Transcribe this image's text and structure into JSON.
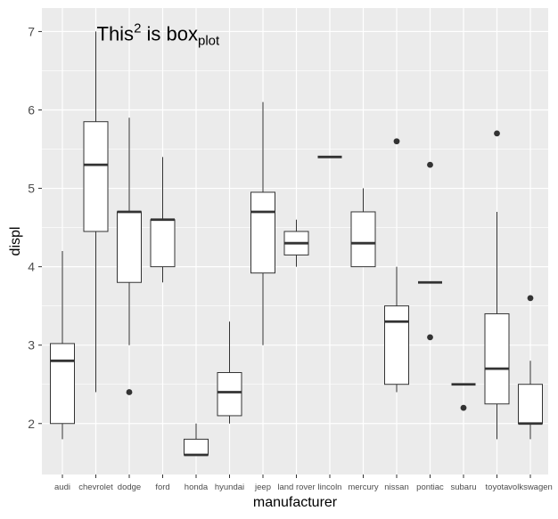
{
  "chart_data": {
    "type": "boxplot",
    "xlabel": "manufacturer",
    "ylabel": "displ",
    "ylim": [
      1.35,
      7.3
    ],
    "yticks": [
      2,
      3,
      4,
      5,
      6,
      7
    ],
    "colors": {
      "panel": "#ebebeb",
      "grid_major": "#ffffff",
      "box_fill": "#ffffff",
      "box_stroke": "#333333",
      "outlier": "#333333",
      "tick": "#333333"
    },
    "annotation": {
      "base": "This",
      "superscript": "2",
      "middle": " is box",
      "subscript": "plot",
      "x_category": "chevrolet",
      "y": 7.0
    },
    "categories": [
      "audi",
      "chevrolet",
      "dodge",
      "ford",
      "honda",
      "hyundai",
      "jeep",
      "land rover",
      "lincoln",
      "mercury",
      "nissan",
      "pontiac",
      "subaru",
      "toyota",
      "volkswagen"
    ],
    "boxes": [
      {
        "name": "audi",
        "low": 1.8,
        "q1": 2.0,
        "median": 2.8,
        "q3": 3.02,
        "high": 4.2,
        "outliers": []
      },
      {
        "name": "chevrolet",
        "low": 2.4,
        "q1": 4.45,
        "median": 5.3,
        "q3": 5.85,
        "high": 7.0,
        "outliers": []
      },
      {
        "name": "dodge",
        "low": 3.0,
        "q1": 3.8,
        "median": 4.7,
        "q3": 4.7,
        "high": 5.9,
        "outliers": [
          2.4
        ]
      },
      {
        "name": "ford",
        "low": 3.8,
        "q1": 4.0,
        "median": 4.6,
        "q3": 4.6,
        "high": 5.4,
        "outliers": []
      },
      {
        "name": "honda",
        "low": 1.6,
        "q1": 1.6,
        "median": 1.6,
        "q3": 1.8,
        "high": 2.0,
        "outliers": []
      },
      {
        "name": "hyundai",
        "low": 2.0,
        "q1": 2.1,
        "median": 2.4,
        "q3": 2.65,
        "high": 3.3,
        "outliers": []
      },
      {
        "name": "jeep",
        "low": 3.0,
        "q1": 3.92,
        "median": 4.7,
        "q3": 4.95,
        "high": 6.1,
        "outliers": []
      },
      {
        "name": "land rover",
        "low": 4.0,
        "q1": 4.15,
        "median": 4.3,
        "q3": 4.45,
        "high": 4.6,
        "outliers": []
      },
      {
        "name": "lincoln",
        "low": 5.4,
        "q1": 5.4,
        "median": 5.4,
        "q3": 5.4,
        "high": 5.4,
        "outliers": []
      },
      {
        "name": "mercury",
        "low": 4.0,
        "q1": 4.0,
        "median": 4.3,
        "q3": 4.7,
        "high": 5.0,
        "outliers": []
      },
      {
        "name": "nissan",
        "low": 2.4,
        "q1": 2.5,
        "median": 3.3,
        "q3": 3.5,
        "high": 4.0,
        "outliers": [
          5.6
        ]
      },
      {
        "name": "pontiac",
        "low": 3.8,
        "q1": 3.8,
        "median": 3.8,
        "q3": 3.8,
        "high": 3.8,
        "outliers": [
          3.1,
          5.3
        ]
      },
      {
        "name": "subaru",
        "low": 2.5,
        "q1": 2.5,
        "median": 2.5,
        "q3": 2.5,
        "high": 2.5,
        "outliers": [
          2.2
        ]
      },
      {
        "name": "toyota",
        "low": 1.8,
        "q1": 2.25,
        "median": 2.7,
        "q3": 3.4,
        "high": 4.7,
        "outliers": [
          5.7
        ]
      },
      {
        "name": "volkswagen",
        "low": 1.8,
        "q1": 2.0,
        "median": 2.0,
        "q3": 2.5,
        "high": 2.8,
        "outliers": [
          3.6
        ]
      }
    ]
  }
}
